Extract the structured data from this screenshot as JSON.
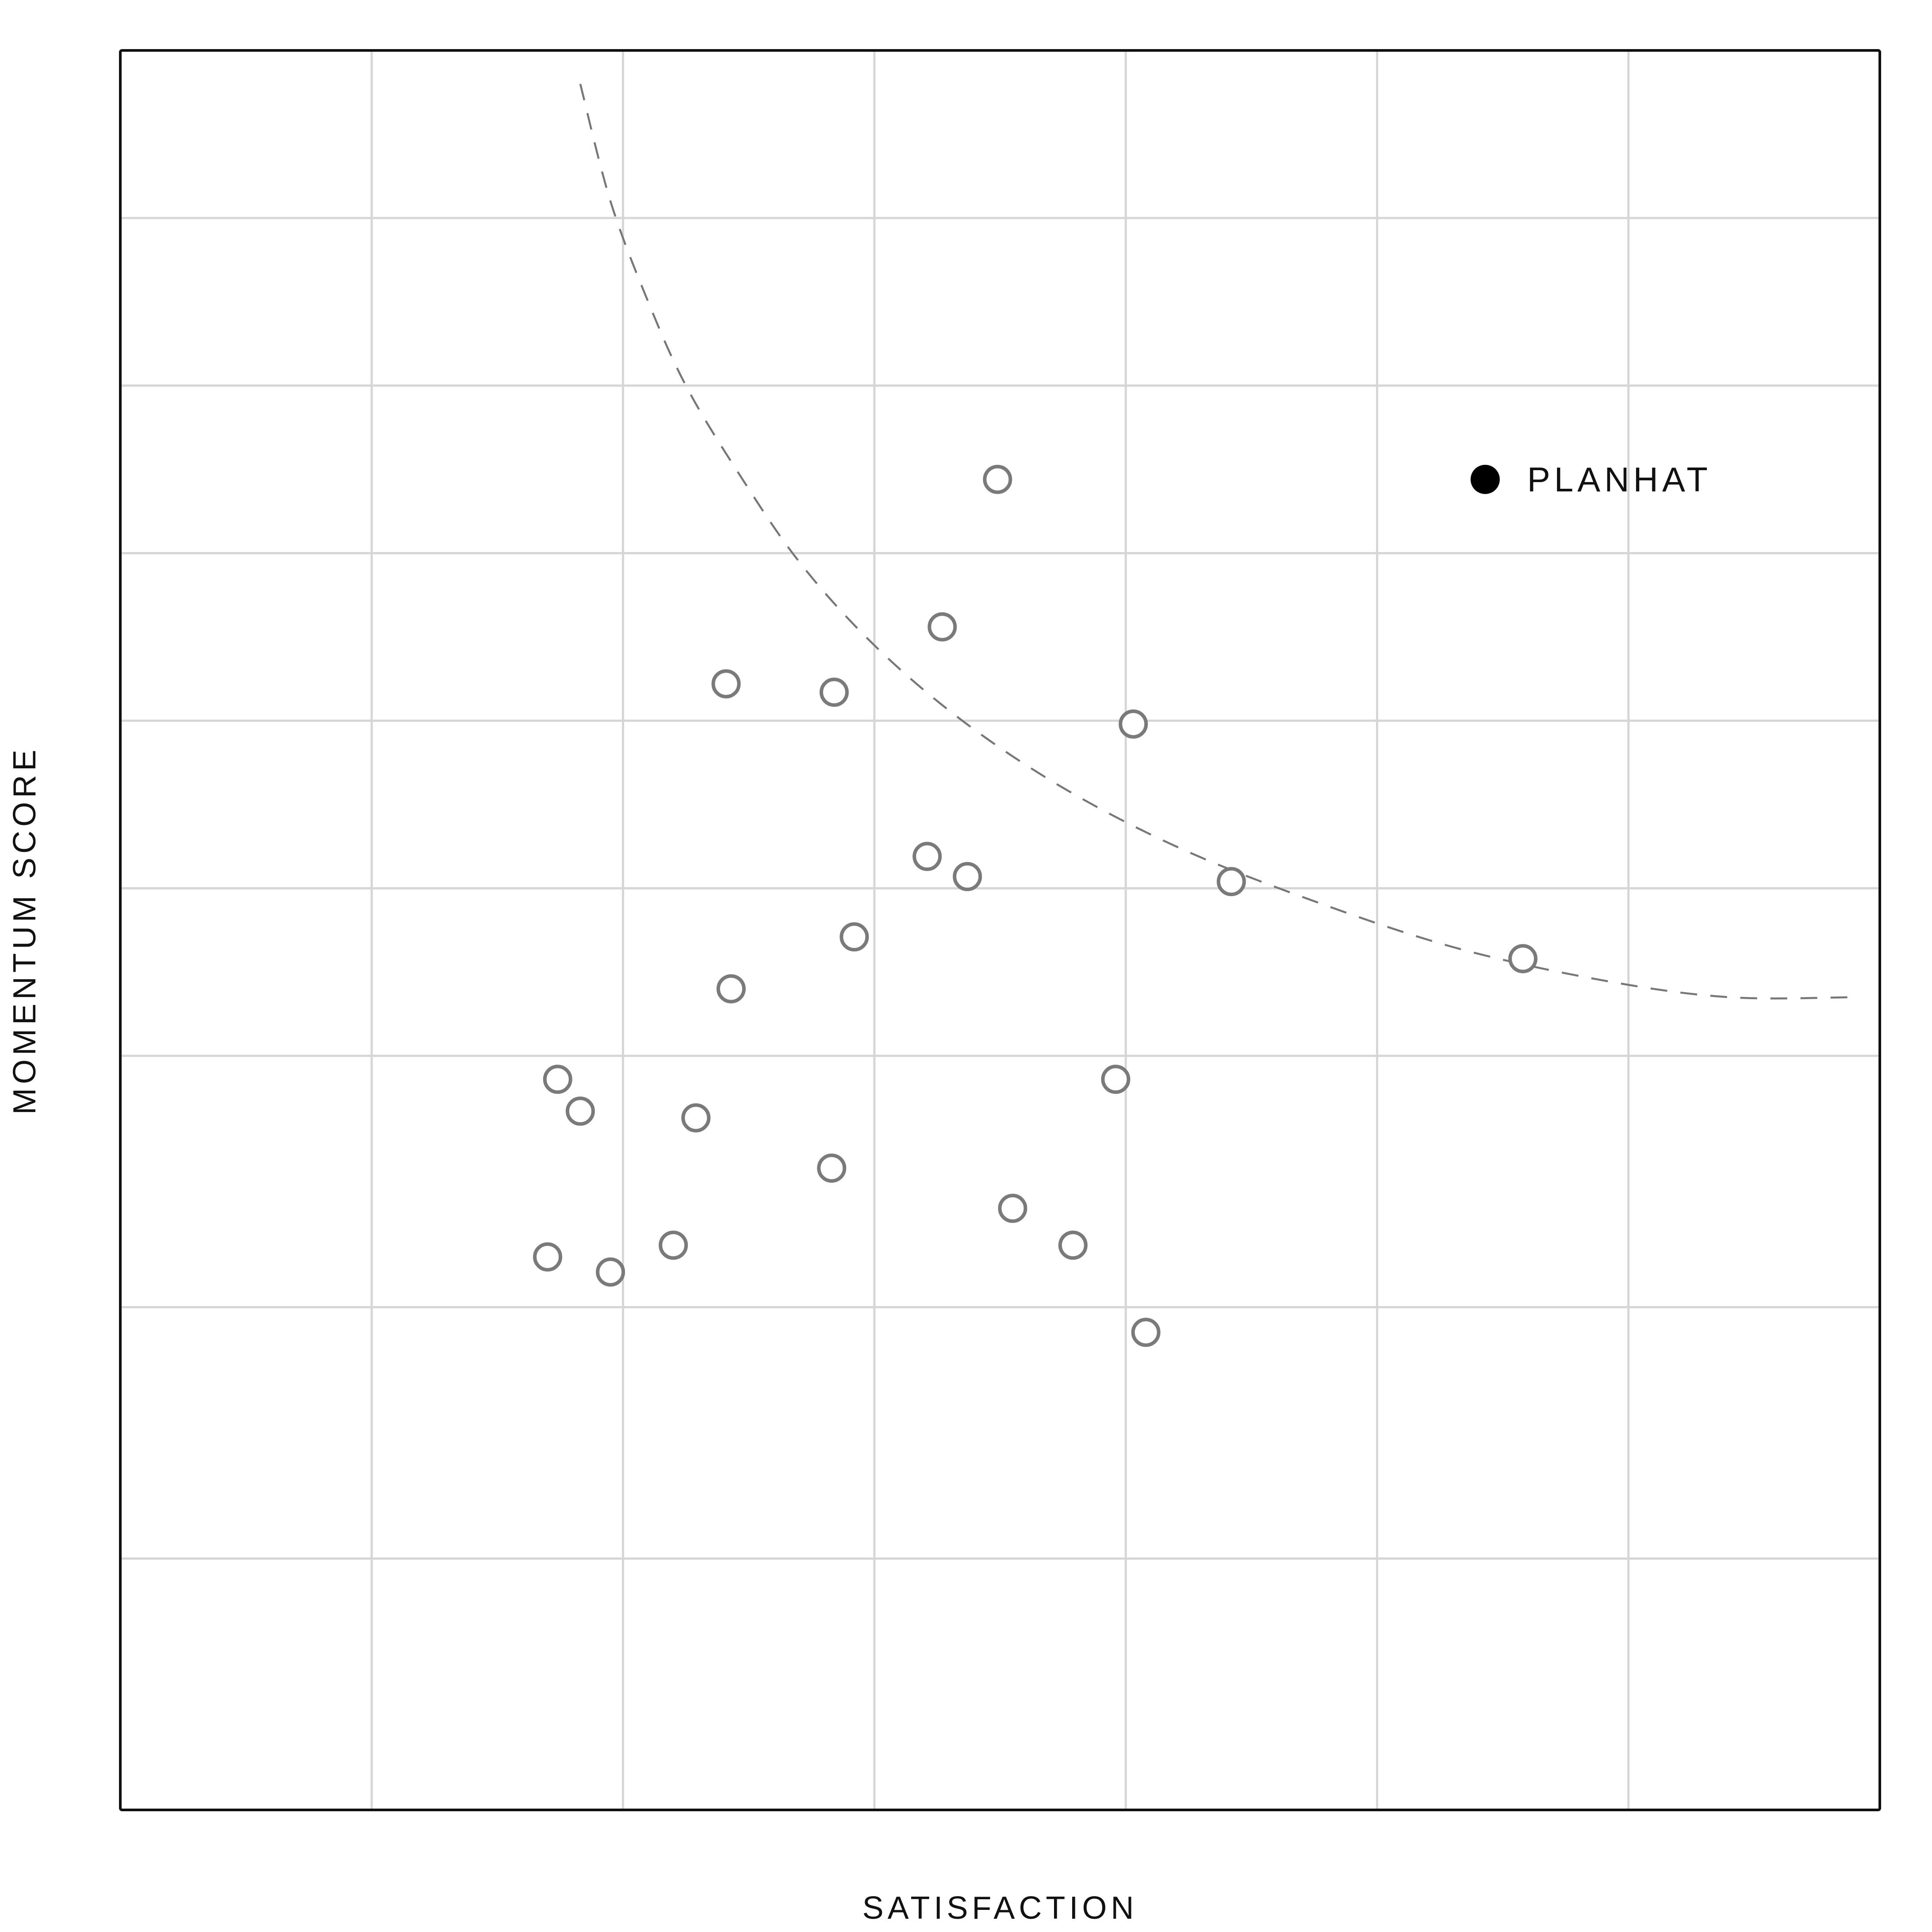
{
  "chart_data": {
    "type": "scatter",
    "title": "",
    "xlabel": "SATISFACTION",
    "ylabel": "MOMENTUM SCORE",
    "xlim": [
      0,
      7
    ],
    "ylim": [
      0,
      10.5
    ],
    "grid": true,
    "tick_labels": "none",
    "colors": {
      "point": "#7a7a7a",
      "highlight": "#000000",
      "grid": "#d6d6d6",
      "curve": "#777777",
      "axis": "#111111"
    },
    "series": [
      {
        "points": [
          {
            "x": 3.49,
            "y": 7.94
          },
          {
            "x": 3.27,
            "y": 7.06
          },
          {
            "x": 2.41,
            "y": 6.72
          },
          {
            "x": 2.84,
            "y": 6.67
          },
          {
            "x": 4.03,
            "y": 6.48
          },
          {
            "x": 3.21,
            "y": 5.69
          },
          {
            "x": 3.37,
            "y": 5.57
          },
          {
            "x": 4.42,
            "y": 5.54
          },
          {
            "x": 2.92,
            "y": 5.21
          },
          {
            "x": 2.43,
            "y": 4.9
          },
          {
            "x": 5.58,
            "y": 5.08
          },
          {
            "x": 1.74,
            "y": 4.36
          },
          {
            "x": 1.83,
            "y": 4.17
          },
          {
            "x": 2.29,
            "y": 4.13
          },
          {
            "x": 2.83,
            "y": 3.83
          },
          {
            "x": 3.96,
            "y": 4.36
          },
          {
            "x": 3.55,
            "y": 3.59
          },
          {
            "x": 3.79,
            "y": 3.37
          },
          {
            "x": 2.2,
            "y": 3.37
          },
          {
            "x": 1.7,
            "y": 3.3
          },
          {
            "x": 1.95,
            "y": 3.21
          },
          {
            "x": 4.08,
            "y": 2.85
          }
        ]
      },
      {
        "name": "PLANHAT",
        "highlight": true,
        "points": [
          {
            "x": 5.43,
            "y": 7.94
          }
        ]
      }
    ],
    "trend_curve": {
      "style": "dashed",
      "points": [
        {
          "x": 1.83,
          "y": 10.3
        },
        {
          "x": 1.95,
          "y": 9.6
        },
        {
          "x": 2.1,
          "y": 9.0
        },
        {
          "x": 2.25,
          "y": 8.5
        },
        {
          "x": 2.45,
          "y": 8.0
        },
        {
          "x": 2.7,
          "y": 7.45
        },
        {
          "x": 3.0,
          "y": 6.95
        },
        {
          "x": 3.35,
          "y": 6.5
        },
        {
          "x": 3.75,
          "y": 6.1
        },
        {
          "x": 4.2,
          "y": 5.75
        },
        {
          "x": 4.7,
          "y": 5.45
        },
        {
          "x": 5.3,
          "y": 5.15
        },
        {
          "x": 5.9,
          "y": 4.95
        },
        {
          "x": 6.4,
          "y": 4.85
        },
        {
          "x": 6.9,
          "y": 4.85
        }
      ]
    }
  }
}
